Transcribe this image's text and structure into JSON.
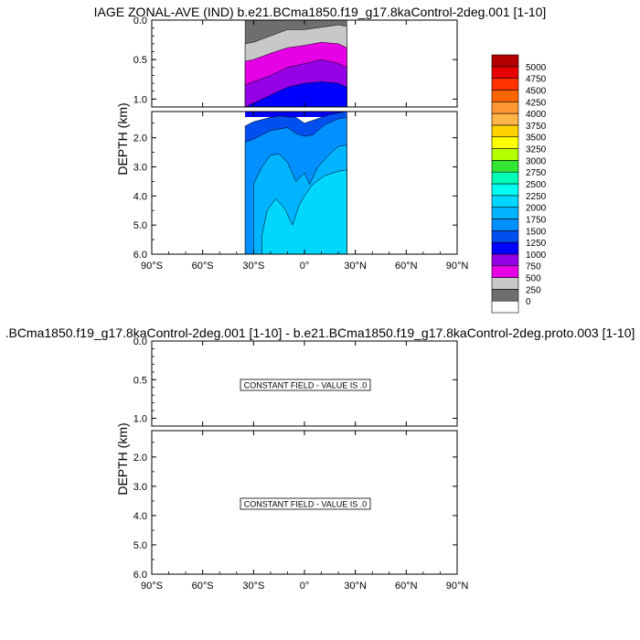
{
  "chart_data": [
    {
      "type": "area",
      "title": "IAGE ZONAL-AVE (IND) b.e21.BCma1850.f19_g17.8kaControl-2deg.001 [1-10]",
      "ylabel": "DEPTH (km)",
      "x_ticks": [
        "90°S",
        "60°S",
        "30°S",
        "0°",
        "30°N",
        "60°N",
        "90°N"
      ],
      "y_ticks_upper": [
        "0.0",
        "0.5",
        "1.0"
      ],
      "y_ticks_lower": [
        "2.0",
        "3.0",
        "4.0",
        "5.0",
        "6.0"
      ],
      "xlim": [
        -90,
        90
      ],
      "ylim_upper": [
        0,
        1.1
      ],
      "ylim_lower": [
        1.1,
        6.0
      ],
      "colorbar": {
        "levels": [
          "0",
          "250",
          "500",
          "750",
          "1000",
          "1250",
          "1500",
          "1750",
          "2000",
          "2250",
          "2500",
          "2750",
          "3000",
          "3250",
          "3500",
          "3750",
          "4000",
          "4250",
          "4500",
          "4750",
          "5000"
        ],
        "colors": [
          "#ffffff",
          "#6e6e6e",
          "#c8c8c8",
          "#e600e6",
          "#9600e6",
          "#0000ff",
          "#0050f0",
          "#0090ff",
          "#00b4ff",
          "#00d7ff",
          "#00fff0",
          "#00ffb4",
          "#32e632",
          "#b4ff00",
          "#ffff00",
          "#ffd200",
          "#ffb446",
          "#ff9632",
          "#ff6400",
          "#ff3200",
          "#e60000",
          "#b40000"
        ]
      },
      "contour_layers": [
        {
          "min_value": 0,
          "color": "#6e6e6e",
          "upper": [
            [
              -35,
              0
            ],
            [
              25,
              0
            ]
          ],
          "lower": []
        },
        {
          "min_value": 250,
          "color": "#c8c8c8",
          "upper": [
            [
              -35,
              0.3
            ],
            [
              -30,
              0.28
            ],
            [
              -20,
              0.2
            ],
            [
              -10,
              0.12
            ],
            [
              0,
              0.12
            ],
            [
              10,
              0.09
            ],
            [
              20,
              0.06
            ],
            [
              25,
              0.08
            ]
          ],
          "lower": []
        },
        {
          "min_value": 500,
          "color": "#e600e6",
          "upper": [
            [
              -35,
              0.52
            ],
            [
              -30,
              0.5
            ],
            [
              -20,
              0.42
            ],
            [
              -10,
              0.35
            ],
            [
              0,
              0.32
            ],
            [
              10,
              0.28
            ],
            [
              20,
              0.3
            ],
            [
              25,
              0.35
            ]
          ],
          "lower": []
        },
        {
          "min_value": 750,
          "color": "#9600e6",
          "upper": [
            [
              -35,
              0.82
            ],
            [
              -30,
              0.78
            ],
            [
              -20,
              0.7
            ],
            [
              -10,
              0.6
            ],
            [
              0,
              0.55
            ],
            [
              10,
              0.5
            ],
            [
              20,
              0.55
            ],
            [
              25,
              0.6
            ]
          ],
          "lower": []
        },
        {
          "min_value": 1000,
          "color": "#0000ff",
          "upper": [
            [
              -35,
              1.1
            ],
            [
              -30,
              1.05
            ],
            [
              -20,
              0.95
            ],
            [
              -10,
              0.85
            ],
            [
              0,
              0.8
            ],
            [
              10,
              0.78
            ],
            [
              20,
              0.8
            ],
            [
              25,
              0.85
            ]
          ],
          "lower": []
        },
        {
          "min_value": 1250,
          "color": "#0050f0",
          "upper": [],
          "lower": [
            [
              -35,
              1.6
            ],
            [
              -30,
              1.45
            ],
            [
              -20,
              1.3
            ],
            [
              -15,
              1.25
            ],
            [
              -5,
              1.3
            ],
            [
              0,
              1.5
            ],
            [
              5,
              1.4
            ],
            [
              15,
              1.2
            ],
            [
              25,
              1.1
            ]
          ]
        },
        {
          "min_value": 1500,
          "color": "#0090ff",
          "upper": [],
          "lower": [
            [
              -35,
              2.15
            ],
            [
              -30,
              2.05
            ],
            [
              -20,
              1.75
            ],
            [
              -10,
              1.65
            ],
            [
              -5,
              1.85
            ],
            [
              0,
              1.95
            ],
            [
              5,
              1.9
            ],
            [
              12,
              1.55
            ],
            [
              20,
              1.35
            ],
            [
              25,
              1.3
            ]
          ]
        },
        {
          "min_value": 1750,
          "color": "#00b4ff",
          "upper": [],
          "lower": [
            [
              -30,
              3.6
            ],
            [
              -25,
              3.0
            ],
            [
              -20,
              2.6
            ],
            [
              -15,
              2.55
            ],
            [
              -10,
              2.85
            ],
            [
              -5,
              3.5
            ],
            [
              0,
              3.2
            ],
            [
              3,
              3.6
            ],
            [
              8,
              3.0
            ],
            [
              15,
              2.55
            ],
            [
              20,
              2.3
            ],
            [
              25,
              2.25
            ]
          ]
        },
        {
          "min_value": 2000,
          "color": "#00d7ff",
          "upper": [],
          "lower": [
            [
              -25,
              5.35
            ],
            [
              -22,
              4.5
            ],
            [
              -17,
              4.1
            ],
            [
              -12,
              4.4
            ],
            [
              -7,
              5.0
            ],
            [
              -3,
              4.3
            ],
            [
              0,
              4.0
            ],
            [
              5,
              3.6
            ],
            [
              12,
              3.3
            ],
            [
              20,
              3.15
            ],
            [
              25,
              3.1
            ]
          ]
        }
      ]
    },
    {
      "type": "area",
      "title": ".BCma1850.f19_g17.8kaControl-2deg.001 [1-10] - b.e21.BCma1850.f19_g17.8kaControl-2deg.proto.003 [1-10]",
      "ylabel": "DEPTH (km)",
      "x_ticks": [
        "90°S",
        "60°S",
        "30°S",
        "0°",
        "30°N",
        "60°N",
        "90°N"
      ],
      "y_ticks_upper": [
        "0.0",
        "0.5",
        "1.0"
      ],
      "y_ticks_lower": [
        "2.0",
        "3.0",
        "4.0",
        "5.0",
        "6.0"
      ],
      "xlim": [
        -90,
        90
      ],
      "annotations": [
        "CONSTANT FIELD - VALUE IS .0",
        "CONSTANT FIELD - VALUE IS .0"
      ]
    }
  ]
}
